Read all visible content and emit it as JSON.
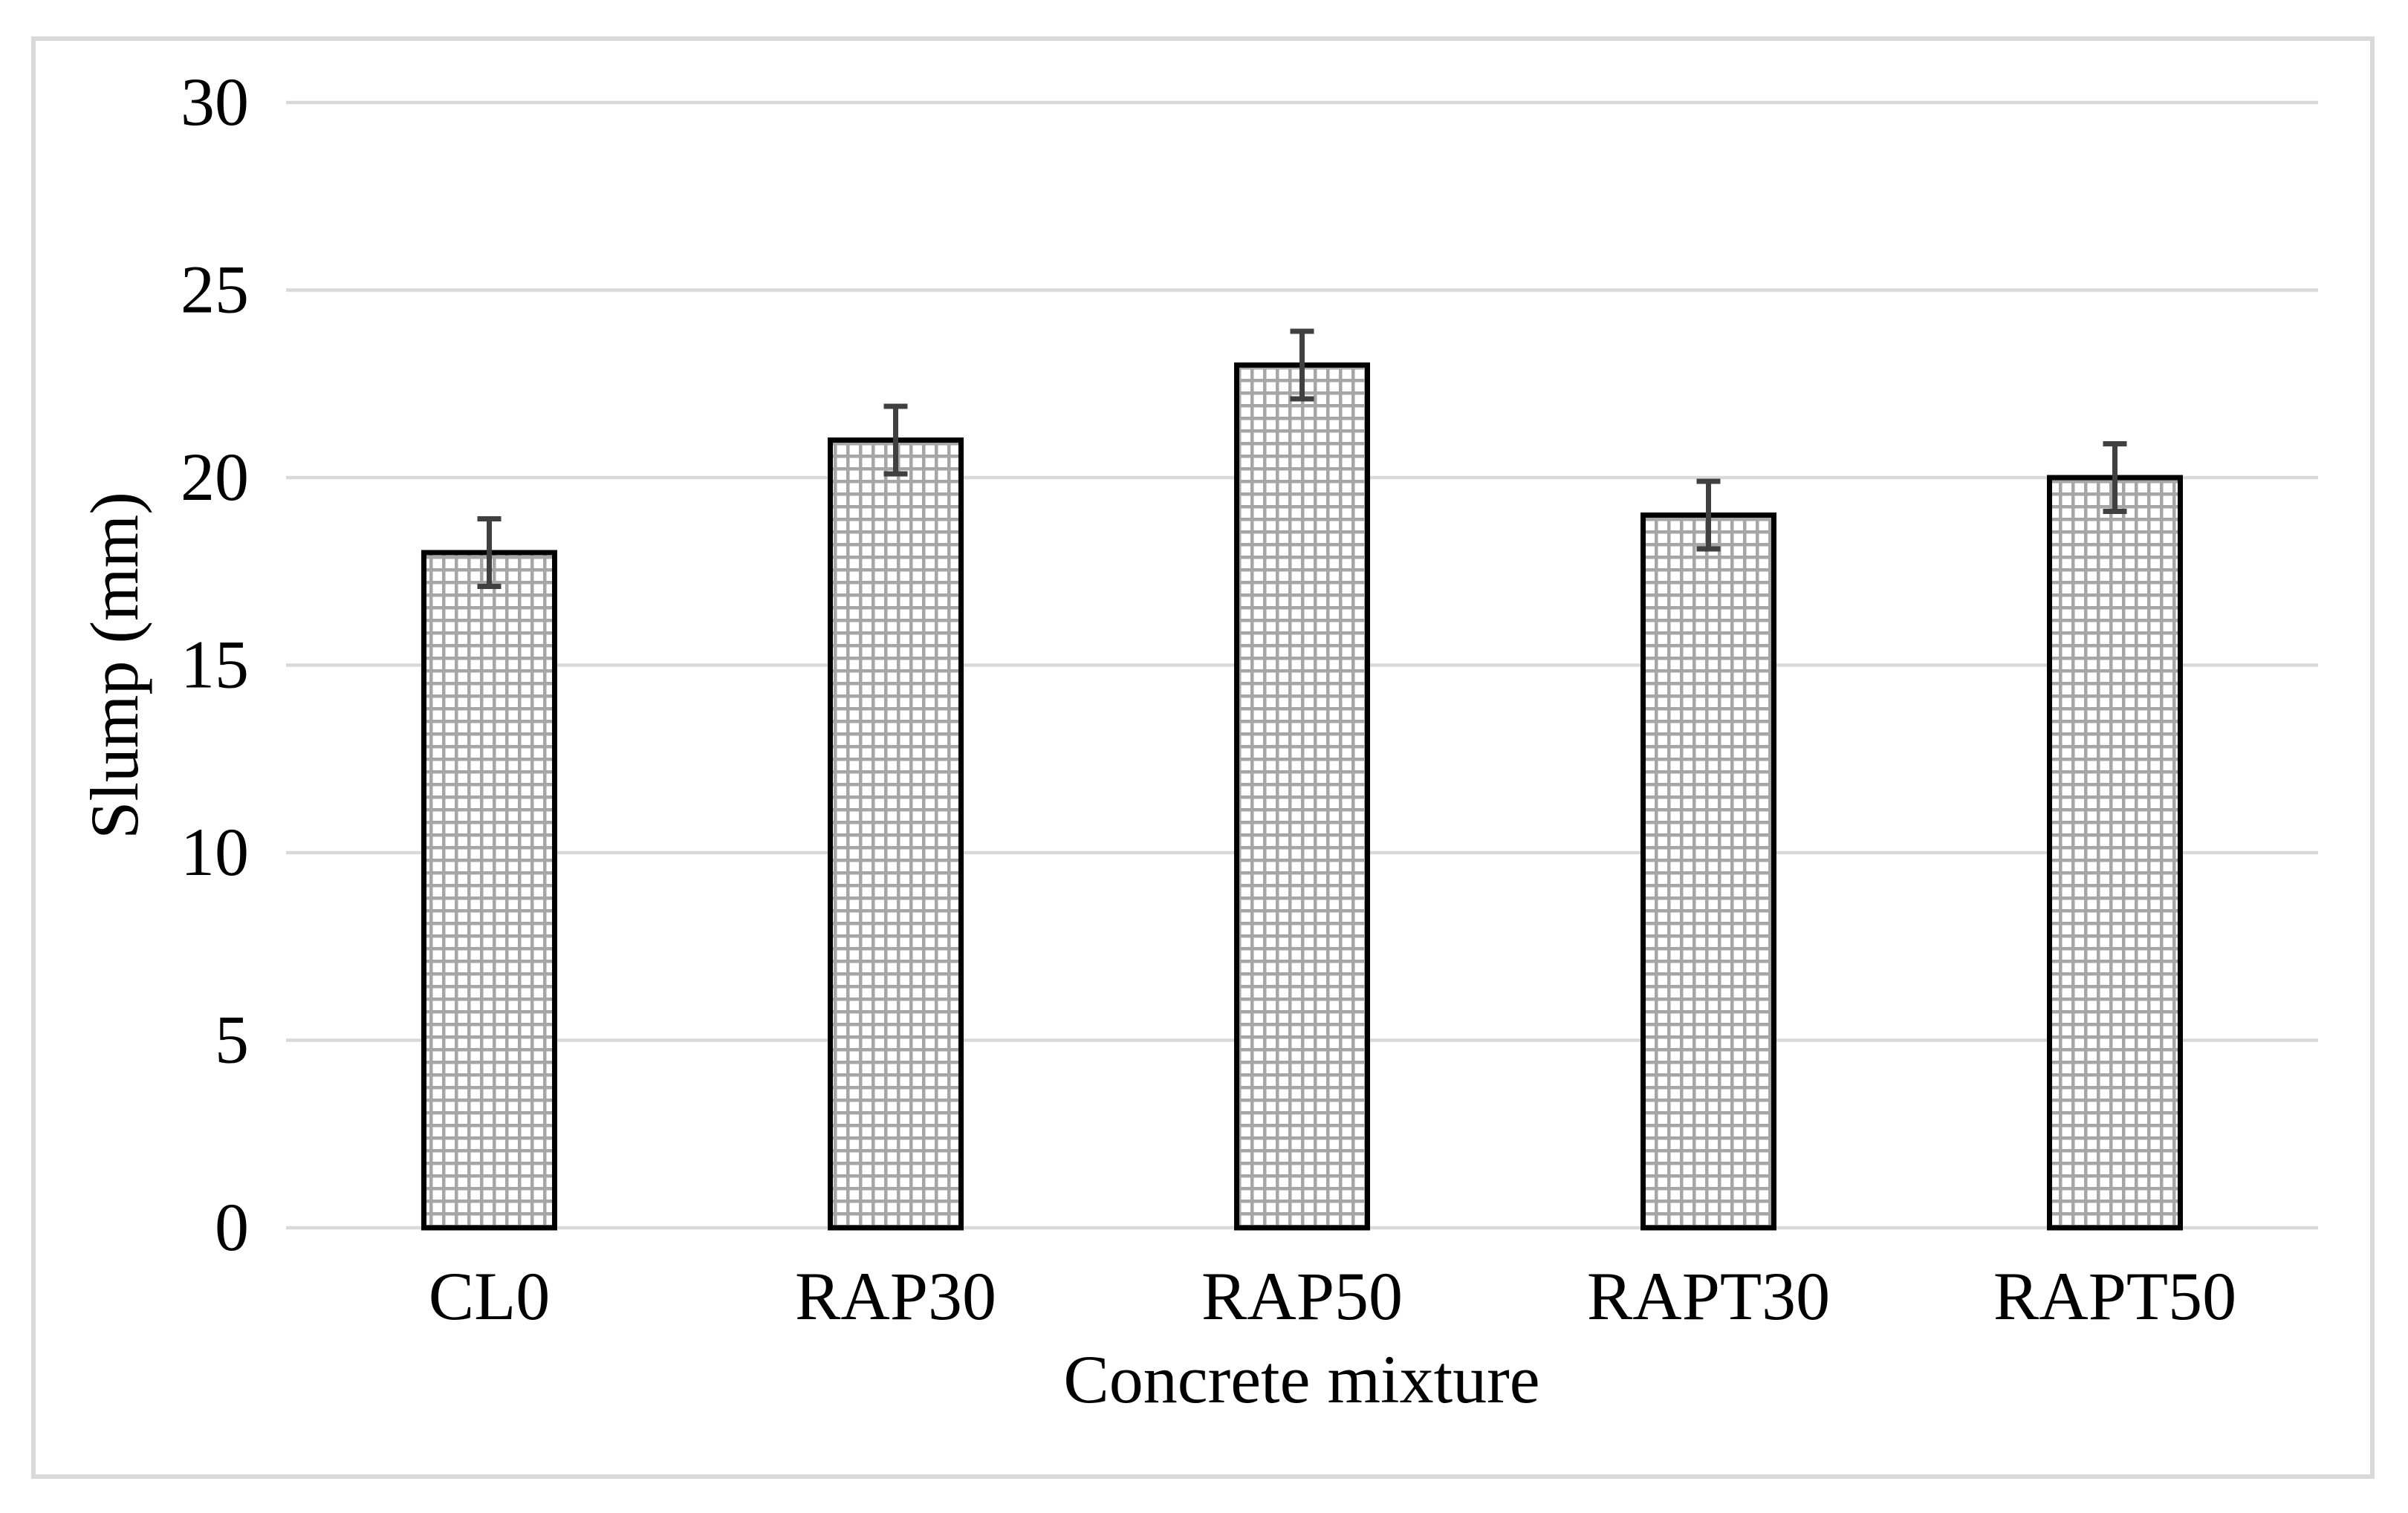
{
  "figure": {
    "background": "#ffffff",
    "border_color": "#d9d9d9"
  },
  "chart_data": {
    "type": "bar",
    "title": "",
    "categories": [
      "CL0",
      "RAP30",
      "RAP50",
      "RAPT30",
      "RAPT50"
    ],
    "values": [
      18,
      21,
      23,
      19,
      20
    ],
    "error_bars": [
      0.9,
      0.9,
      0.9,
      0.9,
      0.9
    ],
    "xlabel": "Concrete mixture",
    "ylabel": "Slump (mm)",
    "ylim": [
      0,
      30
    ],
    "yticks": [
      0,
      5,
      10,
      15,
      20,
      25,
      30
    ],
    "grid": "horizontal",
    "legend": "none",
    "bar_fill_pattern": "small-grid",
    "colors": {
      "gridline": "#d9d9d9",
      "bar_outline": "#000000",
      "pattern_line": "#a6a6a6",
      "error_bar": "#404040",
      "text": "#000000"
    }
  }
}
